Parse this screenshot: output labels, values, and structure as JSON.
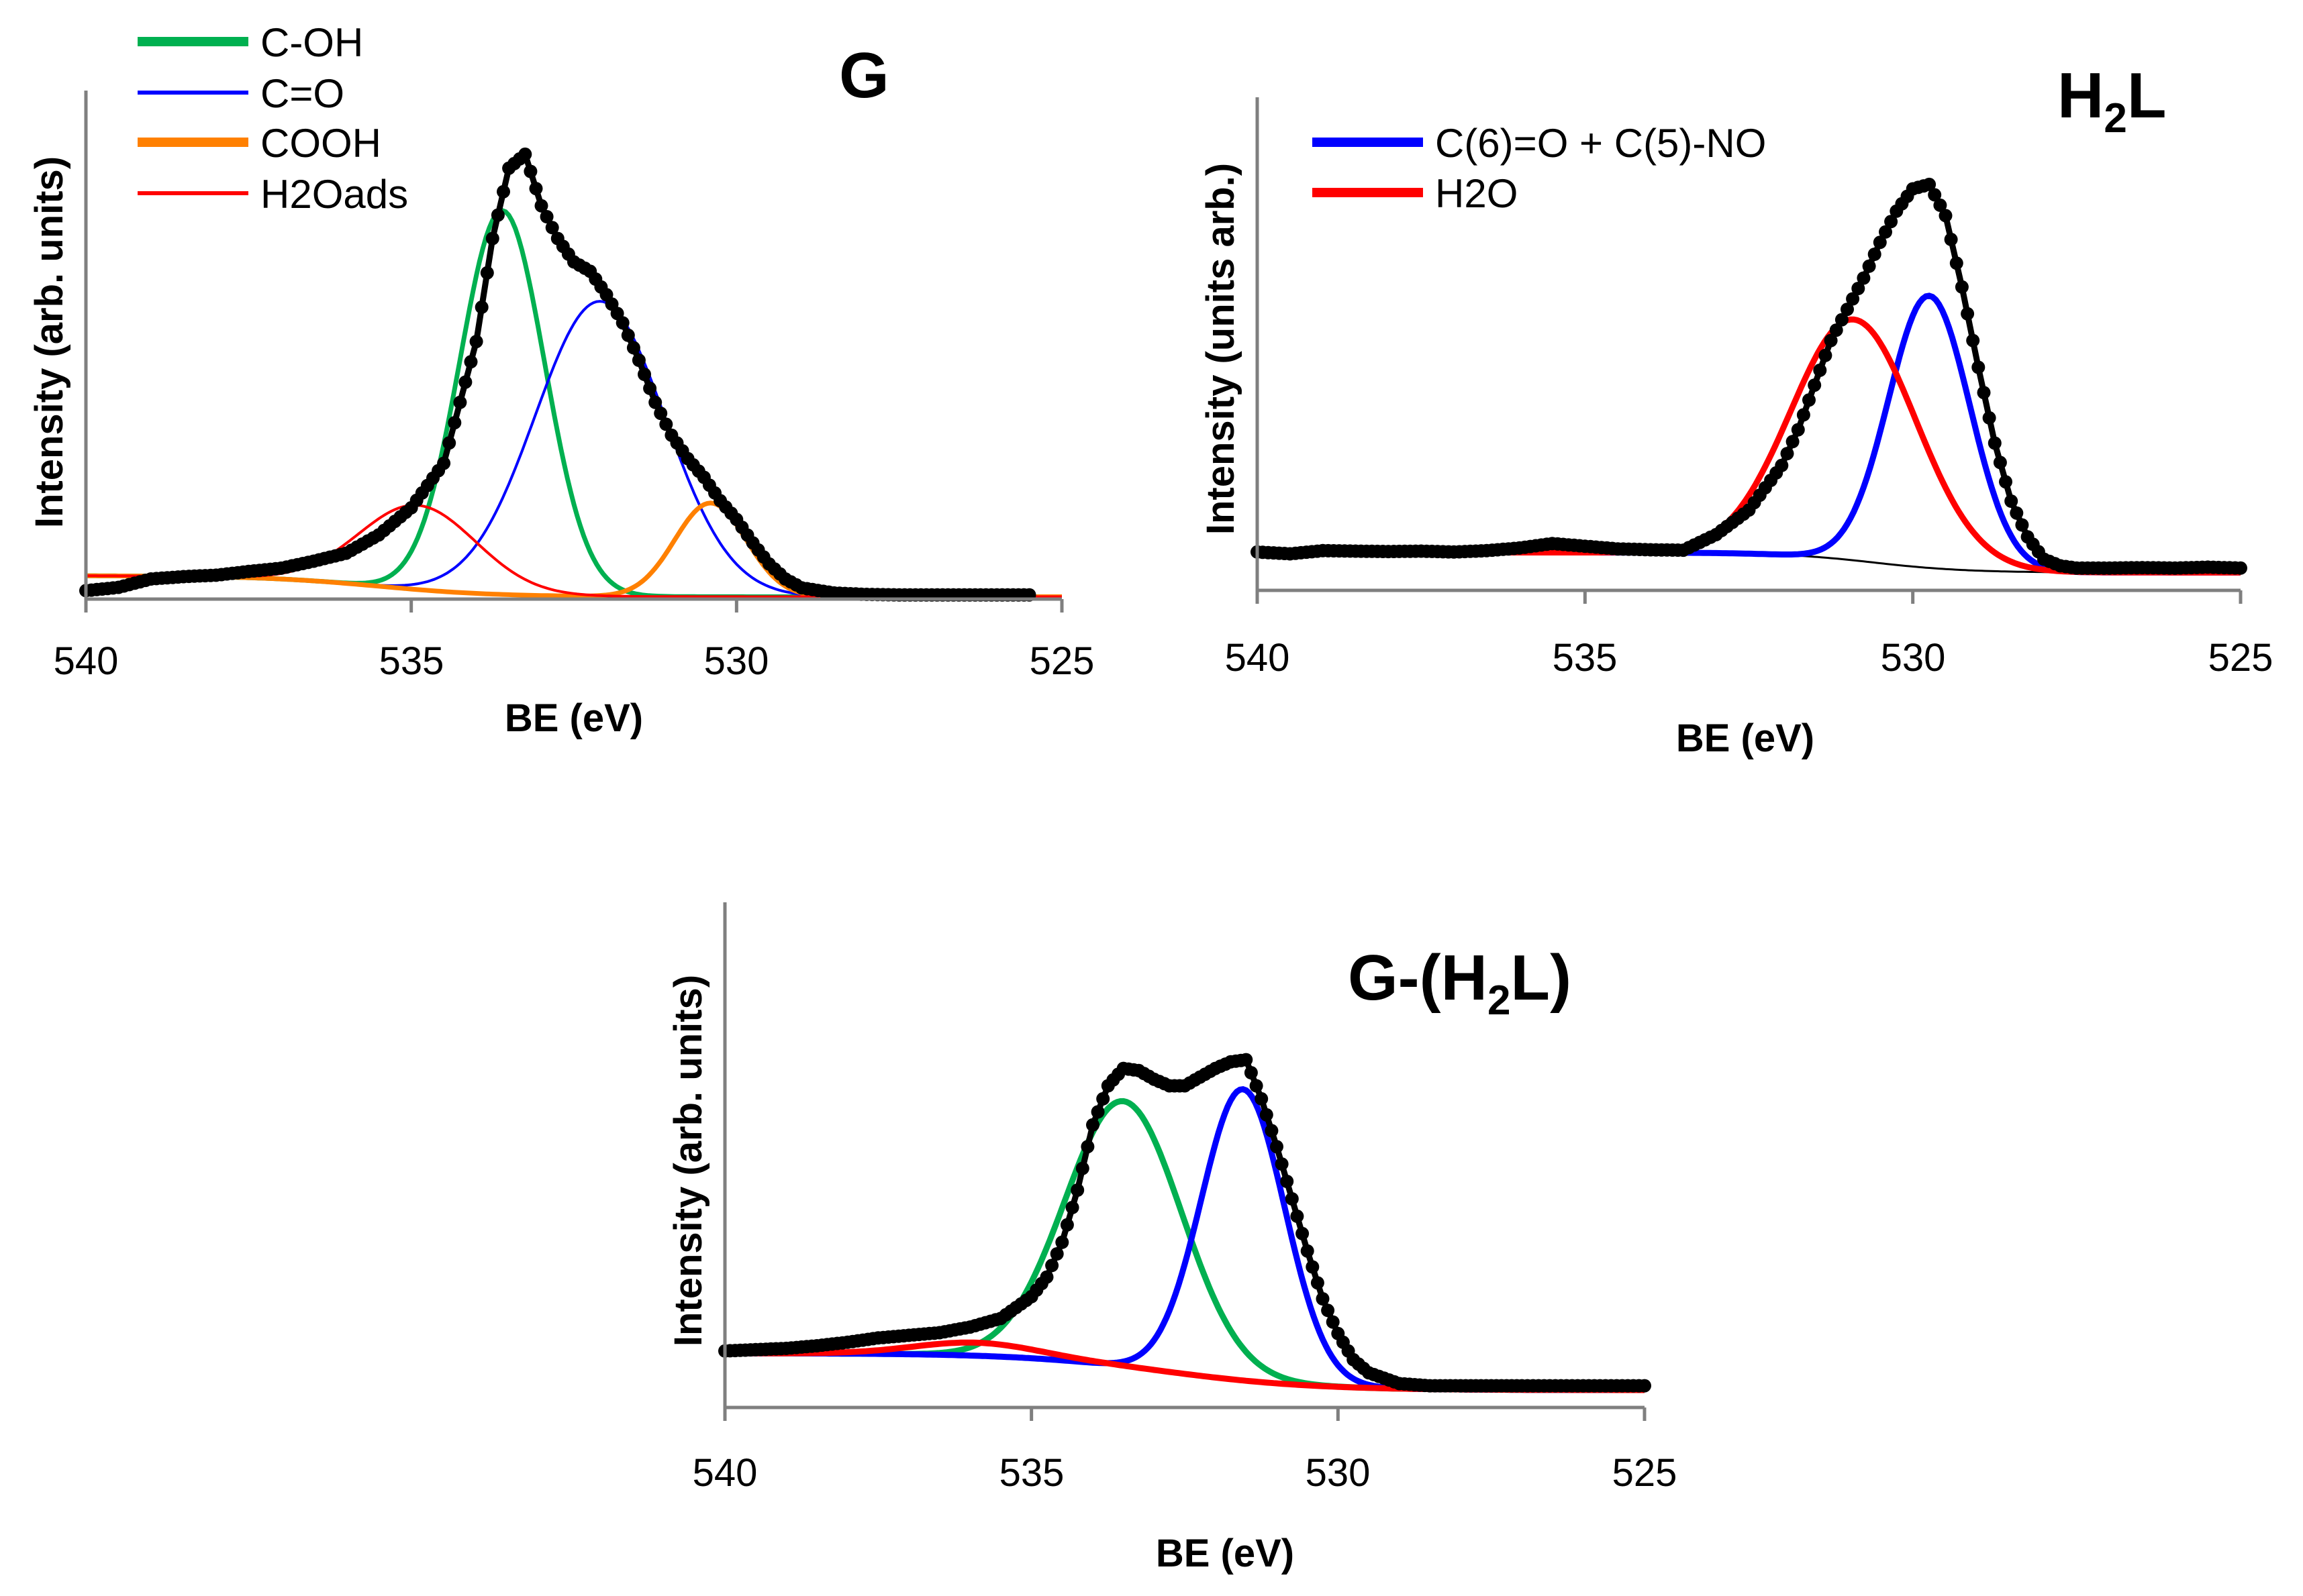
{
  "chart_data": [
    {
      "type": "line",
      "panel": "G",
      "title": "G",
      "xlabel": "BE (eV)",
      "ylabel": "Intensity (arb. units)",
      "xlim": [
        540,
        525
      ],
      "ylim": [
        0,
        100
      ],
      "xticks": [
        "540",
        "535",
        "530",
        "525"
      ],
      "legend": [
        "C-OH",
        "C=O",
        "COOH",
        "H2Oads"
      ],
      "legend_position": "top-left",
      "components": [
        {
          "name": "C-OH",
          "color": "#00b050",
          "width": 7,
          "kind": "gauss",
          "center": 533.6,
          "sigma": 0.65,
          "amp": 82
        },
        {
          "name": "C=O",
          "color": "#0000ff",
          "width": 4,
          "kind": "gauss",
          "center": 532.1,
          "sigma": 1.0,
          "amp": 63
        },
        {
          "name": "COOH",
          "color": "#ff8000",
          "width": 7,
          "kind": "gauss",
          "center": 530.4,
          "sigma": 0.55,
          "amp": 20
        },
        {
          "name": "H2Oads",
          "color": "#ff0000",
          "width": 4,
          "kind": "gauss",
          "center": 534.9,
          "sigma": 0.9,
          "amp": 18
        }
      ],
      "background_color": "#000000",
      "envelope_color": "#000000",
      "data_color": "#000000",
      "background": {
        "low": 0.5,
        "high": 5,
        "center": 535.5,
        "sigma": 0.9
      },
      "data_points": [
        [
          540.0,
          1.8
        ],
        [
          539.5,
          2.5
        ],
        [
          539.0,
          4.3
        ],
        [
          538.5,
          4.8
        ],
        [
          538.0,
          5.1
        ],
        [
          537.5,
          5.9
        ],
        [
          537.0,
          6.6
        ],
        [
          536.5,
          8.1
        ],
        [
          536.0,
          9.8
        ],
        [
          535.5,
          13.7
        ],
        [
          535.0,
          19.5
        ],
        [
          534.5,
          29
        ],
        [
          534.0,
          55
        ],
        [
          533.75,
          77
        ],
        [
          533.5,
          92
        ],
        [
          533.25,
          95
        ],
        [
          533.0,
          84
        ],
        [
          532.75,
          77
        ],
        [
          532.5,
          72
        ],
        [
          532.25,
          70
        ],
        [
          532.0,
          65
        ],
        [
          531.75,
          59
        ],
        [
          531.5,
          51
        ],
        [
          531.25,
          42
        ],
        [
          531.0,
          35
        ],
        [
          530.75,
          30
        ],
        [
          530.5,
          26
        ],
        [
          530.25,
          21
        ],
        [
          530.0,
          17
        ],
        [
          529.75,
          12
        ],
        [
          529.5,
          7.5
        ],
        [
          529.25,
          4.3
        ],
        [
          529.0,
          2.4
        ],
        [
          528.5,
          1.3
        ],
        [
          528.0,
          1
        ],
        [
          527.5,
          0.9
        ],
        [
          527.0,
          0.9
        ],
        [
          526.5,
          0.9
        ],
        [
          526.0,
          0.9
        ],
        [
          525.5,
          0.9
        ]
      ]
    },
    {
      "type": "line",
      "panel": "H2L",
      "title": "H",
      "title_sub": "2",
      "title_end": "L",
      "xlabel": "BE (eV)",
      "ylabel": "Intensity (units arb.)",
      "xlim": [
        540,
        525
      ],
      "ylim": [
        0,
        100
      ],
      "xticks": [
        "540",
        "535",
        "530",
        "525"
      ],
      "legend": [
        "C(6)=O + C(5)-NO",
        "H2O"
      ],
      "legend_position": "top-left",
      "components": [
        {
          "name": "C(6)=O + C(5)-NO",
          "color": "#0000ff",
          "width": 9,
          "kind": "gauss",
          "center": 529.75,
          "sigma": 0.62,
          "amp": 61
        },
        {
          "name": "H2O",
          "color": "#ff0000",
          "width": 9,
          "kind": "gauss",
          "center": 530.9,
          "sigma": 0.95,
          "amp": 54
        }
      ],
      "background_color": "#000000",
      "envelope_color": "#000000",
      "data_color": "#000000",
      "background": {
        "low": 4,
        "high": 8.5,
        "center": 530.6,
        "sigma": 0.7
      },
      "data_points": [
        [
          540.0,
          8.6
        ],
        [
          539.5,
          8.2
        ],
        [
          539.0,
          8.9
        ],
        [
          538.5,
          8.8
        ],
        [
          538.0,
          8.7
        ],
        [
          537.5,
          8.8
        ],
        [
          537.0,
          8.6
        ],
        [
          536.5,
          8.9
        ],
        [
          536.0,
          9.5
        ],
        [
          535.5,
          10.5
        ],
        [
          535.0,
          9.9
        ],
        [
          534.5,
          9.3
        ],
        [
          534.0,
          9.1
        ],
        [
          533.5,
          9.0
        ],
        [
          533.0,
          12.5
        ],
        [
          532.5,
          18
        ],
        [
          532.0,
          28
        ],
        [
          531.75,
          36
        ],
        [
          531.5,
          46
        ],
        [
          531.25,
          56
        ],
        [
          531.0,
          63
        ],
        [
          530.75,
          70
        ],
        [
          530.5,
          78
        ],
        [
          530.25,
          85
        ],
        [
          530.0,
          90
        ],
        [
          529.75,
          91
        ],
        [
          529.5,
          84
        ],
        [
          529.25,
          68
        ],
        [
          529.0,
          50
        ],
        [
          528.75,
          33
        ],
        [
          528.5,
          20
        ],
        [
          528.25,
          12
        ],
        [
          528.0,
          7
        ],
        [
          527.75,
          5.5
        ],
        [
          527.5,
          5
        ],
        [
          527.0,
          5
        ],
        [
          526.5,
          5.1
        ],
        [
          526.0,
          5
        ],
        [
          525.5,
          5.2
        ],
        [
          525.0,
          5
        ]
      ]
    },
    {
      "type": "line",
      "panel": "G-(H2L)",
      "title": "G-(H",
      "title_sub": "2",
      "title_end": "L)",
      "xlabel": "BE (eV)",
      "ylabel": "Intensity (arb. units)",
      "xlim": [
        540,
        525
      ],
      "ylim": [
        0,
        100
      ],
      "xticks": [
        "540",
        "535",
        "530",
        "525"
      ],
      "legend": [],
      "components": [
        {
          "name": "C-OH",
          "color": "#00b050",
          "width": 9,
          "kind": "gauss",
          "center": 533.5,
          "sigma": 0.95,
          "amp": 61
        },
        {
          "name": "C=O",
          "color": "#0000ff",
          "width": 9,
          "kind": "gauss",
          "center": 531.55,
          "sigma": 0.68,
          "amp": 67
        },
        {
          "name": "H2O",
          "color": "#ff0000",
          "width": 9,
          "kind": "gauss",
          "center": 535.9,
          "sigma": 1.0,
          "amp": 3
        }
      ],
      "background_color": "#000000",
      "envelope_color": "#000000",
      "data_color": "#000000",
      "background": {
        "low": 4,
        "high": 12.5,
        "center": 532.8,
        "sigma": 1.2
      },
      "data_points": [
        [
          540.0,
          13
        ],
        [
          539.5,
          13.3
        ],
        [
          539.0,
          13.6
        ],
        [
          538.5,
          14.2
        ],
        [
          538.0,
          15
        ],
        [
          537.5,
          16
        ],
        [
          537.0,
          16.6
        ],
        [
          536.5,
          17.2
        ],
        [
          536.0,
          18.5
        ],
        [
          535.5,
          20.5
        ],
        [
          535.0,
          25.5
        ],
        [
          534.75,
          30
        ],
        [
          534.5,
          38
        ],
        [
          534.25,
          50
        ],
        [
          534.0,
          65
        ],
        [
          533.75,
          74
        ],
        [
          533.5,
          78
        ],
        [
          533.25,
          77.5
        ],
        [
          533.0,
          75.5
        ],
        [
          532.75,
          74
        ],
        [
          532.5,
          74
        ],
        [
          532.25,
          76
        ],
        [
          532.0,
          78
        ],
        [
          531.75,
          79.5
        ],
        [
          531.5,
          80
        ],
        [
          531.25,
          71
        ],
        [
          531.0,
          60
        ],
        [
          530.75,
          48
        ],
        [
          530.5,
          36
        ],
        [
          530.25,
          25
        ],
        [
          530.0,
          17
        ],
        [
          529.75,
          11
        ],
        [
          529.5,
          8
        ],
        [
          529.0,
          5.5
        ],
        [
          528.5,
          5
        ],
        [
          528.0,
          5
        ],
        [
          527.5,
          5
        ],
        [
          527.0,
          5
        ],
        [
          526.0,
          5
        ],
        [
          525.0,
          5
        ]
      ]
    }
  ]
}
